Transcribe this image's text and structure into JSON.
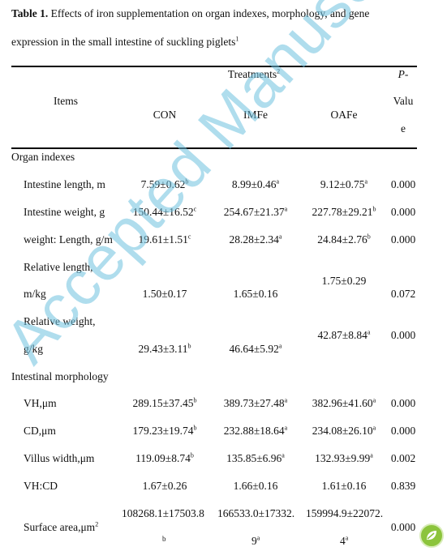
{
  "caption": {
    "label": "Table 1.",
    "line1": "Effects of iron supplementation on organ indexes, morphology, and gene",
    "line2": "expression in the small intestine of suckling piglets",
    "note": "1"
  },
  "header": {
    "items": "Items",
    "treatments": "Treatments",
    "treatments_note": "2",
    "con": "CON",
    "imfe": "IMFe",
    "oafe": "OAFe",
    "p1": "P-",
    "p2": "Valu",
    "p3": "e"
  },
  "sections": {
    "organ": "Organ indexes",
    "morph": "Intestinal morphology"
  },
  "rows": [
    {
      "label": "Intestine length, m",
      "con": "7.59±0.62",
      "con_sup": "b",
      "imfe": "8.99±0.46",
      "imfe_sup": "a",
      "oafe": "9.12±0.75",
      "oafe_sup": "a",
      "p": "0.000"
    },
    {
      "label": "Intestine weight, g",
      "con": "150.44±16.52",
      "con_sup": "c",
      "imfe": "254.67±21.37",
      "imfe_sup": "a",
      "oafe": "227.78±29.21",
      "oafe_sup": "b",
      "p": "0.000"
    },
    {
      "label": "weight: Length, g/m",
      "con": "19.61±1.51",
      "con_sup": "c",
      "imfe": "28.28±2.34",
      "imfe_sup": "a",
      "oafe": "24.84±2.76",
      "oafe_sup": "b",
      "p": "0.000"
    },
    {
      "label1": "Relative length,",
      "label2": "m/kg",
      "con": "1.50±0.17",
      "imfe": "1.65±0.16",
      "oafe": "1.75±0.29",
      "p": "0.072"
    },
    {
      "label1": "Relative weight,",
      "label2": "g/kg",
      "con": "29.43±3.11",
      "con_sup": "b",
      "imfe": "46.64±5.92",
      "imfe_sup": "a",
      "oafe": "42.87±8.84",
      "oafe_sup": "a",
      "p": "0.000"
    },
    {
      "label": "VH,μm",
      "con": "289.15±37.45",
      "con_sup": "b",
      "imfe": "389.73±27.48",
      "imfe_sup": "a",
      "oafe": "382.96±41.60",
      "oafe_sup": "a",
      "p": "0.000"
    },
    {
      "label": "CD,μm",
      "con": "179.23±19.74",
      "con_sup": "b",
      "imfe": "232.88±18.64",
      "imfe_sup": "a",
      "oafe": "234.08±26.10",
      "oafe_sup": "a",
      "p": "0.000"
    },
    {
      "label": "Villus width,μm",
      "con": "119.09±8.74",
      "con_sup": "b",
      "imfe": "135.85±6.96",
      "imfe_sup": "a",
      "oafe": "132.93±9.99",
      "oafe_sup": "a",
      "p": "0.002"
    },
    {
      "label": "VH:CD",
      "con": "1.67±0.26",
      "imfe": "1.66±0.16",
      "oafe": "1.61±0.16",
      "p": "0.839"
    },
    {
      "label": "Surface area,μm",
      "label_sup": "2",
      "con1": "108268.1±17503.8",
      "con2": "b",
      "imfe1": "166533.0±17332.",
      "imfe2": "9",
      "imfe2_sup": "a",
      "oafe1": "159994.9±22072.",
      "oafe2": "4",
      "oafe2_sup": "a",
      "p": "0.000"
    }
  ],
  "watermark": "Accepted Manuscript",
  "colors": {
    "watermark": "#6fc2e0",
    "logo": "#8cc43c"
  }
}
